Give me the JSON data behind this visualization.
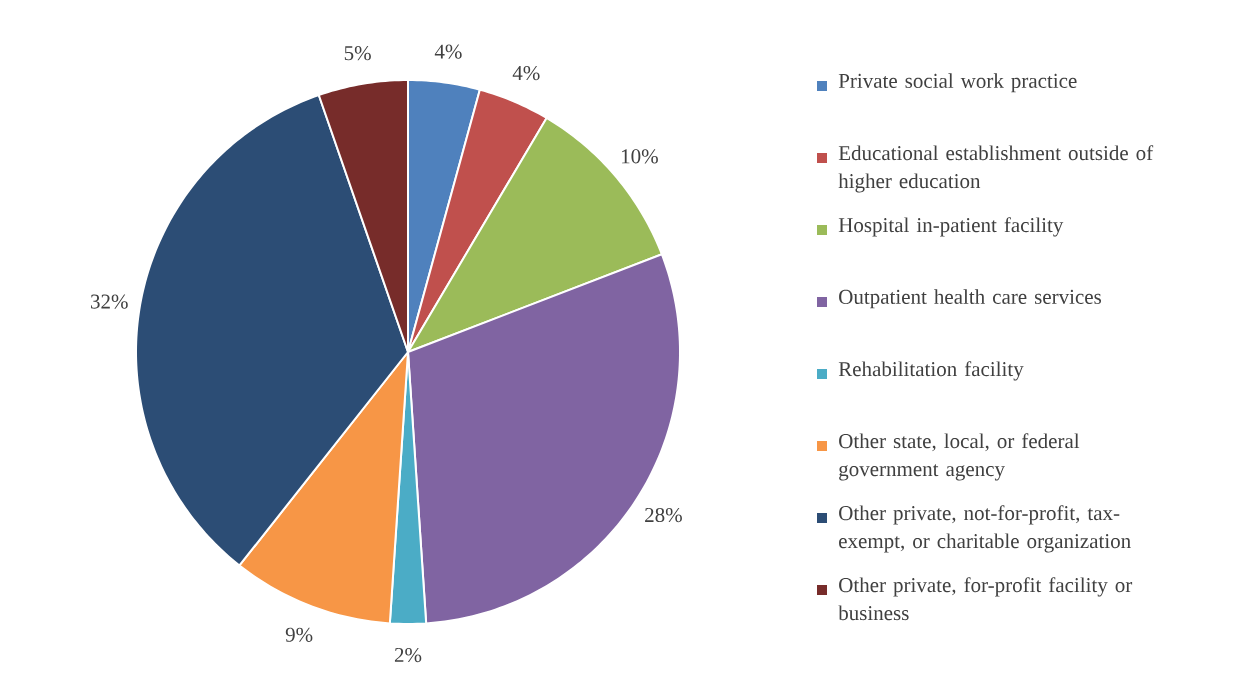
{
  "chart_data": {
    "type": "pie",
    "categories": [
      "Private social work practice",
      "Educational establishment outside of higher education",
      "Hospital in-patient facility",
      "Outpatient health care services",
      "Rehabilitation facility",
      "Other state, local, or federal government agency",
      "Other private, not-for-profit, tax-exempt, or charitable organization",
      "Other private, for-profit facility or business"
    ],
    "values": [
      4,
      4,
      10,
      28,
      2,
      9,
      32,
      5
    ],
    "value_labels": [
      "4%",
      "4%",
      "10%",
      "28%",
      "2%",
      "9%",
      "32%",
      "5%"
    ],
    "colors": [
      "#4f81bd",
      "#c0504d",
      "#9bbb59",
      "#8064a2",
      "#4bacc6",
      "#f79646",
      "#2c4d75",
      "#772c2a"
    ],
    "legend": "right"
  }
}
